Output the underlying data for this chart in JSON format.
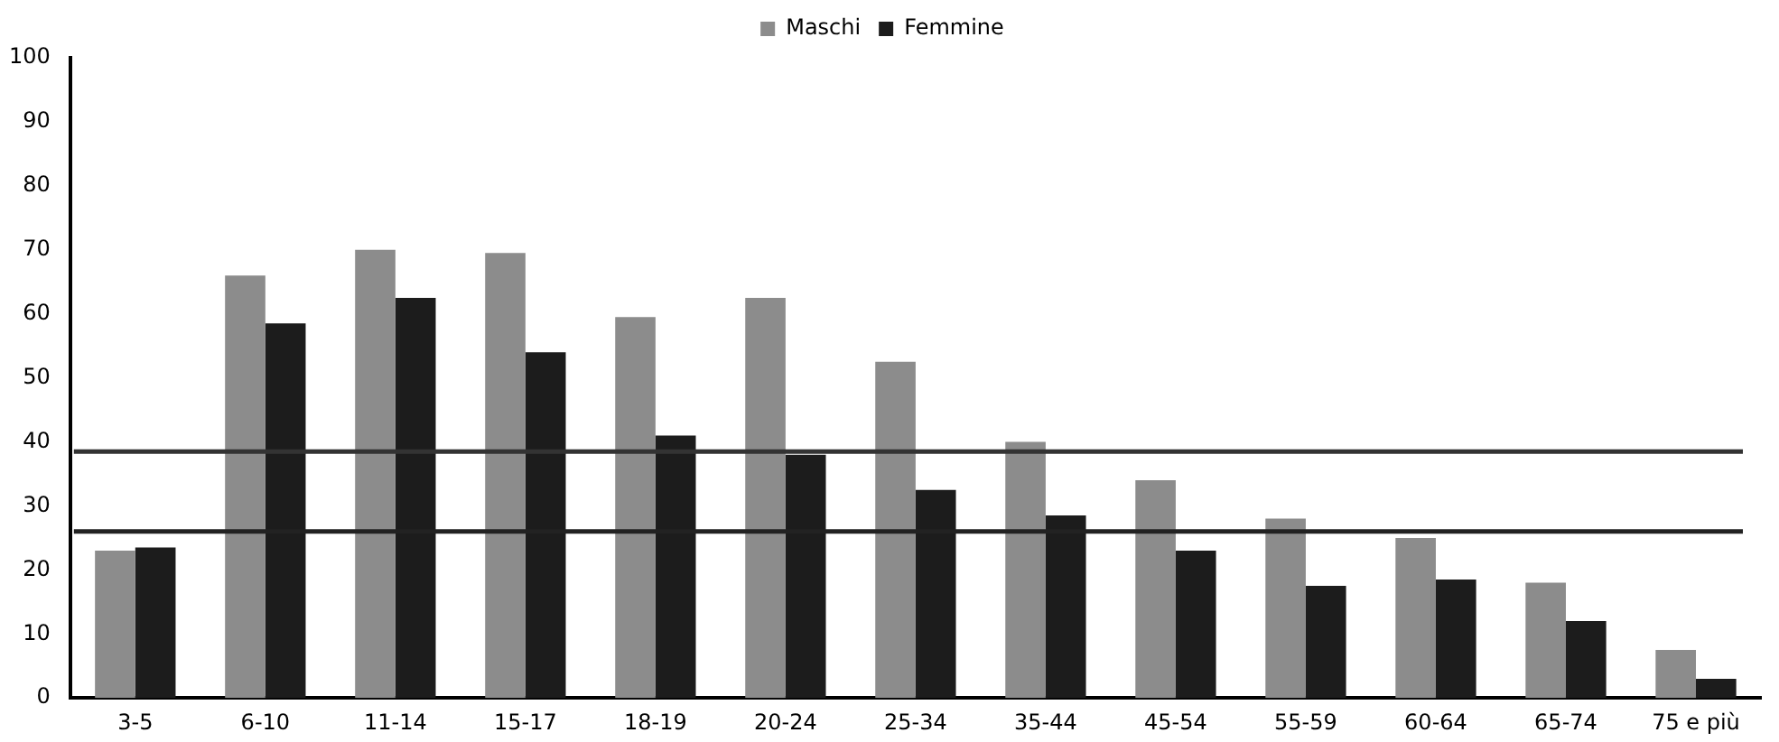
{
  "chart_data": {
    "type": "bar",
    "categories": [
      "3-5",
      "6-10",
      "11-14",
      "15-17",
      "18-19",
      "20-24",
      "25-34",
      "35-44",
      "45-54",
      "55-59",
      "60-64",
      "65-74",
      "75 e più"
    ],
    "series": [
      {
        "name": "Maschi",
        "color": "#8c8c8c",
        "values": [
          23,
          66,
          70,
          69.5,
          59.5,
          62.5,
          52.5,
          40,
          34,
          28,
          25,
          18,
          7.5
        ]
      },
      {
        "name": "Femmine",
        "color": "#1c1c1c",
        "values": [
          23.5,
          58.5,
          62.5,
          54,
          41,
          38,
          32.5,
          28.5,
          23,
          17.5,
          18.5,
          12,
          3
        ]
      }
    ],
    "ylim": [
      0,
      100
    ],
    "yticks": [
      0,
      10,
      20,
      30,
      40,
      50,
      60,
      70,
      80,
      90,
      100
    ],
    "grid": false,
    "legend": "top",
    "ref_lines": [
      {
        "axis": "y",
        "value": 38.5,
        "color": "#333333"
      },
      {
        "axis": "y",
        "value": 26,
        "color": "#222222"
      }
    ]
  }
}
